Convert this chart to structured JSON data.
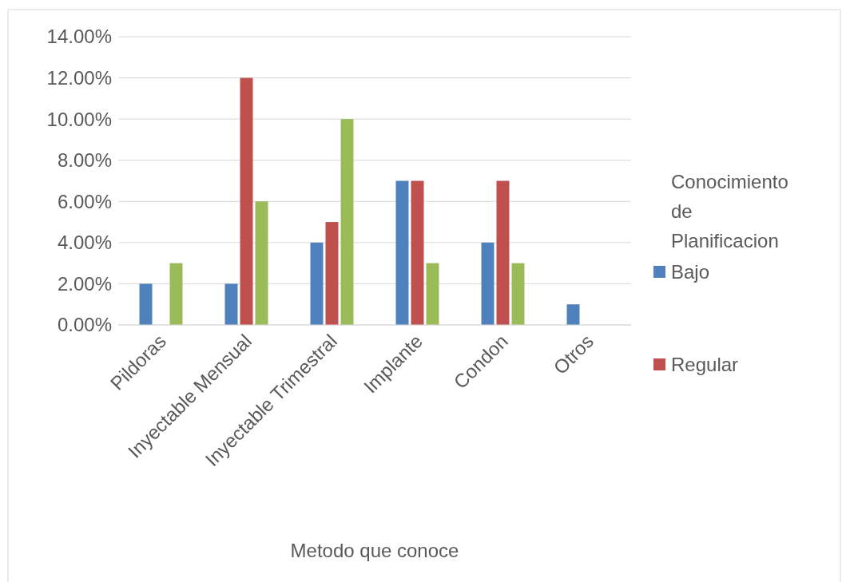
{
  "chart_data": {
    "type": "bar",
    "xlabel": "Metodo que conoce",
    "legend_title": "Conocimiento de Planificacion",
    "categories": [
      "Pildoras",
      "Inyectable Mensual",
      "Inyectable Trimestral",
      "Implante",
      "Condon",
      "Otros"
    ],
    "series": [
      {
        "name": "Bajo",
        "color": "#4f81bd",
        "values": [
          2,
          2,
          4,
          7,
          4,
          1
        ]
      },
      {
        "name": "Regular",
        "color": "#c0504d",
        "values": [
          0,
          12,
          5,
          7,
          7,
          0
        ]
      },
      {
        "color": "#9bbb59",
        "values": [
          3,
          6,
          10,
          3,
          3,
          0
        ]
      }
    ],
    "ylim": [
      0,
      14
    ],
    "yticks": [
      {
        "value": 0,
        "label": "0.00%"
      },
      {
        "value": 2,
        "label": "2.00%"
      },
      {
        "value": 4,
        "label": "4.00%"
      },
      {
        "value": 6,
        "label": "6.00%"
      },
      {
        "value": 8,
        "label": "8.00%"
      },
      {
        "value": 10,
        "label": "10.00%"
      },
      {
        "value": 12,
        "label": "12.00%"
      },
      {
        "value": 14,
        "label": "14.00%"
      }
    ],
    "grid": "y",
    "legend": "right"
  }
}
